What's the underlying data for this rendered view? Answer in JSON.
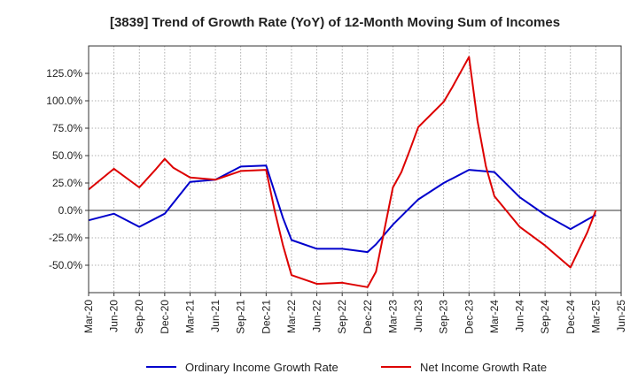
{
  "chart_data": {
    "type": "line",
    "title": "[3839]  Trend of Growth Rate (YoY) of 12-Month Moving Sum of Incomes",
    "xlabel": "",
    "ylabel": "",
    "grid": true,
    "legend_position": "bottom",
    "ylim": [
      -75,
      150
    ],
    "yticks": [
      -50,
      -25,
      0,
      25,
      50,
      75,
      100,
      125
    ],
    "ytick_labels": [
      "-50.0%",
      "-25.0%",
      "0.0%",
      "25.0%",
      "50.0%",
      "75.0%",
      "100.0%",
      "125.0%"
    ],
    "x_tick_labels": [
      "Mar-20",
      "Jun-20",
      "Sep-20",
      "Dec-20",
      "Mar-21",
      "Jun-21",
      "Sep-21",
      "Dec-21",
      "Mar-22",
      "Jun-22",
      "Sep-22",
      "Dec-22",
      "Mar-23",
      "Jun-23",
      "Sep-23",
      "Dec-23",
      "Mar-24",
      "Jun-24",
      "Sep-24",
      "Dec-24",
      "Mar-25",
      "Jun-25"
    ],
    "series": [
      {
        "name": "Ordinary Income Growth Rate",
        "color": "#0000cc",
        "points": [
          [
            "Mar-20",
            -9
          ],
          [
            "Jun-20",
            -3
          ],
          [
            "Sep-20",
            -15
          ],
          [
            "Dec-20",
            -3
          ],
          [
            "Mar-21",
            26
          ],
          [
            "Jun-21",
            28
          ],
          [
            "Sep-21",
            40
          ],
          [
            "Dec-21",
            41
          ],
          [
            "Feb-22",
            -7
          ],
          [
            "Mar-22",
            -27
          ],
          [
            "Jun-22",
            -35
          ],
          [
            "Sep-22",
            -35
          ],
          [
            "Dec-22",
            -38
          ],
          [
            "Jan-23",
            -31
          ],
          [
            "Mar-23",
            -13
          ],
          [
            "Jun-23",
            10
          ],
          [
            "Sep-23",
            25
          ],
          [
            "Dec-23",
            37
          ],
          [
            "Mar-24",
            35
          ],
          [
            "Jun-24",
            12
          ],
          [
            "Sep-24",
            -4
          ],
          [
            "Dec-24",
            -17
          ],
          [
            "Mar-25",
            -4
          ]
        ]
      },
      {
        "name": "Net Income Growth Rate",
        "color": "#dd0000",
        "points": [
          [
            "Mar-20",
            19
          ],
          [
            "Jun-20",
            38
          ],
          [
            "Sep-20",
            21
          ],
          [
            "Nov-20",
            38
          ],
          [
            "Dec-20",
            47
          ],
          [
            "Jan-21",
            39
          ],
          [
            "Mar-21",
            30
          ],
          [
            "Jun-21",
            28
          ],
          [
            "Sep-21",
            36
          ],
          [
            "Dec-21",
            37
          ],
          [
            "Jan-22",
            0
          ],
          [
            "Feb-22",
            -32
          ],
          [
            "Mar-22",
            -59
          ],
          [
            "Jun-22",
            -67
          ],
          [
            "Sep-22",
            -66
          ],
          [
            "Dec-22",
            -70
          ],
          [
            "Jan-23",
            -56
          ],
          [
            "Mar-23",
            21
          ],
          [
            "Apr-23",
            35
          ],
          [
            "May-23",
            55
          ],
          [
            "Jun-23",
            76
          ],
          [
            "Sep-23",
            99
          ],
          [
            "Oct-23",
            112
          ],
          [
            "Nov-23",
            126
          ],
          [
            "Dec-23",
            140
          ],
          [
            "Jan-24",
            82
          ],
          [
            "Feb-24",
            40
          ],
          [
            "Mar-24",
            13
          ],
          [
            "Jun-24",
            -15
          ],
          [
            "Sep-24",
            -32
          ],
          [
            "Dec-24",
            -52
          ],
          [
            "Jan-25",
            -36
          ],
          [
            "Feb-25",
            -20
          ],
          [
            "Mar-25",
            0
          ]
        ]
      }
    ]
  }
}
